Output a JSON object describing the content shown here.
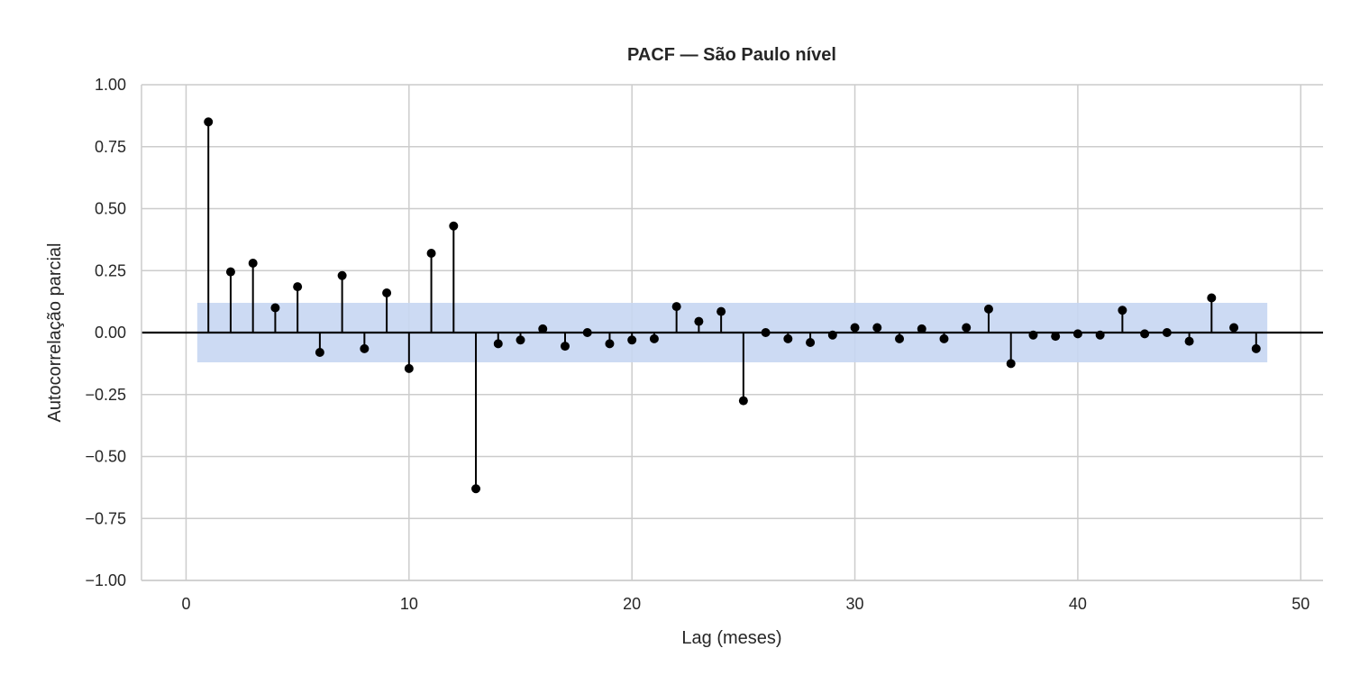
{
  "chart_data": {
    "type": "stem",
    "title": "PACF — São Paulo nível",
    "xlabel": "Lag (meses)",
    "ylabel": "Autocorrelação parcial",
    "xlim": [
      -2,
      51
    ],
    "ylim": [
      -1.0,
      1.0
    ],
    "xticks": [
      0,
      10,
      20,
      30,
      40,
      50
    ],
    "xtick_labels": [
      "0",
      "10",
      "20",
      "30",
      "40",
      "50"
    ],
    "yticks": [
      1.0,
      0.75,
      0.5,
      0.25,
      0.0,
      -0.25,
      -0.5,
      -0.75,
      -1.0
    ],
    "ytick_labels": [
      "1.00",
      "0.75",
      "0.50",
      "0.25",
      "0.00",
      "−0.25",
      "−0.50",
      "−0.75",
      "−1.00"
    ],
    "grid": true,
    "confidence_band": {
      "x_range": [
        0.5,
        48.5
      ],
      "lower": -0.12,
      "upper": 0.12
    },
    "lags": [
      1,
      2,
      3,
      4,
      5,
      6,
      7,
      8,
      9,
      10,
      11,
      12,
      13,
      14,
      15,
      16,
      17,
      18,
      19,
      20,
      21,
      22,
      23,
      24,
      25,
      26,
      27,
      28,
      29,
      30,
      31,
      32,
      33,
      34,
      35,
      36,
      37,
      38,
      39,
      40,
      41,
      42,
      43,
      44,
      45,
      46,
      47,
      48
    ],
    "values": [
      0.85,
      0.245,
      0.28,
      0.1,
      0.185,
      -0.08,
      0.23,
      -0.065,
      0.16,
      -0.145,
      0.32,
      0.43,
      -0.63,
      -0.045,
      -0.03,
      0.015,
      -0.055,
      0.0,
      -0.045,
      -0.03,
      -0.025,
      0.105,
      0.045,
      0.085,
      -0.275,
      0.0,
      -0.025,
      -0.04,
      -0.01,
      0.02,
      0.02,
      -0.025,
      0.015,
      -0.025,
      0.02,
      0.095,
      -0.125,
      -0.01,
      -0.015,
      -0.005,
      -0.01,
      0.09,
      -0.005,
      0.0,
      -0.035,
      0.14,
      0.02,
      -0.065
    ],
    "colors": {
      "stem": "#000000",
      "band": "#c7d6f2",
      "grid": "#cccccc",
      "axis": "#cccccc",
      "zero_line": "#000000"
    }
  }
}
